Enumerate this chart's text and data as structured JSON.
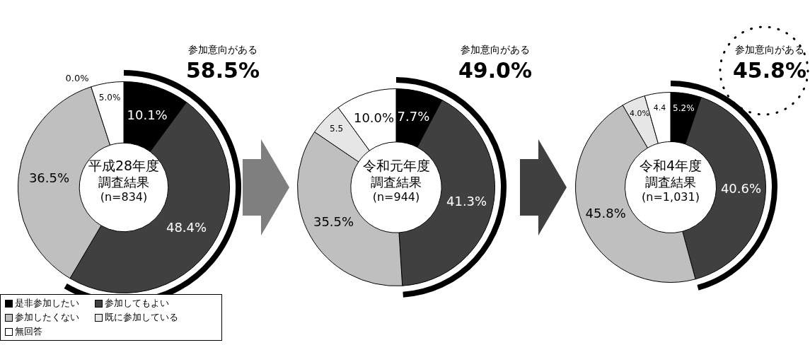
{
  "chart_data": [
    {
      "type": "donut",
      "title": "平成28年度",
      "subtitle": "調査結果",
      "annotations": [
        "(n=834)",
        "参加意向がある",
        "58.5%"
      ],
      "categories": [
        "是非参加したい",
        "参加してもよい",
        "参加したくない",
        "既に参加している",
        "無回答"
      ],
      "values": [
        10.1,
        48.4,
        36.5,
        0.0,
        5.0
      ],
      "colors": [
        "#000000",
        "#404040",
        "#bfbfbf",
        "#e6e6e6",
        "#ffffff"
      ],
      "value_labels": [
        "10.1%",
        "48.4%",
        "36.5%",
        "0.0%",
        "5.0%"
      ],
      "legend": "bottom left"
    },
    {
      "type": "donut",
      "title": "令和元年度",
      "subtitle": "調査結果",
      "annotations": [
        "(n=944)",
        "参加意向がある",
        "49.0%"
      ],
      "categories": [
        null,
        null,
        null,
        null,
        null
      ],
      "values": [
        7.7,
        41.3,
        35.5,
        5.5,
        10.0
      ],
      "colors": [
        "#000000",
        "#404040",
        "#bfbfbf",
        "#e6e6e6",
        "#ffffff"
      ],
      "value_labels": [
        "7.7%",
        "41.3%",
        "35.5%",
        "5.5",
        "10.0%"
      ],
      "legend": false
    },
    {
      "type": "donut",
      "title": "令和4年度",
      "subtitle": "調査結果",
      "annotations": [
        "(n=1,031)",
        "参加意向がある",
        "45.8%"
      ],
      "categories": [
        null,
        null,
        null,
        null,
        null
      ],
      "values": [
        5.2,
        40.6,
        45.8,
        4.0,
        4.4
      ],
      "colors": [
        "#000000",
        "#404040",
        "#bfbfbf",
        "#e6e6e6",
        "#ffffff"
      ],
      "value_labels": [
        "5.2%",
        "40.6%",
        "45.8%",
        "4.0%",
        "4.4"
      ],
      "legend": false
    }
  ]
}
